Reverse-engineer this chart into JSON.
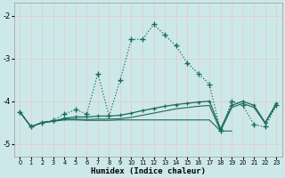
{
  "xlabel": "Humidex (Indice chaleur)",
  "xlim": [
    -0.5,
    23.5
  ],
  "ylim": [
    -5.3,
    -1.7
  ],
  "yticks": [
    -5,
    -4,
    -3,
    -2
  ],
  "xticks": [
    0,
    1,
    2,
    3,
    4,
    5,
    6,
    7,
    8,
    9,
    10,
    11,
    12,
    13,
    14,
    15,
    16,
    17,
    18,
    19,
    20,
    21,
    22,
    23
  ],
  "bg_color": "#cde8e8",
  "grid_color": "#e8c8c8",
  "line_color": "#1a6b5a",
  "dot_x": [
    0,
    1,
    2,
    3,
    4,
    5,
    6,
    7,
    8,
    9,
    10,
    11,
    12,
    13,
    14,
    15,
    16,
    17,
    18,
    19,
    20,
    21,
    22,
    23
  ],
  "dot_y": [
    -4.25,
    -4.6,
    -4.5,
    -4.45,
    -4.3,
    -4.2,
    -4.3,
    -3.35,
    -4.35,
    -3.5,
    -2.55,
    -2.55,
    -2.2,
    -2.45,
    -2.7,
    -3.1,
    -3.35,
    -3.6,
    -4.7,
    -4.0,
    -4.1,
    -4.55,
    -4.6,
    -4.1
  ],
  "slope_x": [
    0,
    1,
    2,
    3,
    4,
    5,
    6,
    7,
    8,
    9,
    10,
    11,
    12,
    13,
    14,
    15,
    16,
    17,
    18,
    19,
    20,
    21,
    22,
    23
  ],
  "slope_y": [
    -4.25,
    -4.6,
    -4.5,
    -4.47,
    -4.4,
    -4.37,
    -4.37,
    -4.35,
    -4.35,
    -4.33,
    -4.28,
    -4.22,
    -4.17,
    -4.12,
    -4.08,
    -4.05,
    -4.02,
    -4.0,
    -4.65,
    -4.1,
    -4.0,
    -4.1,
    -4.5,
    -4.05
  ],
  "mid_x": [
    0,
    1,
    2,
    3,
    4,
    5,
    6,
    7,
    8,
    9,
    10,
    11,
    12,
    13,
    14,
    15,
    16,
    17,
    18,
    19,
    20,
    21,
    22,
    23
  ],
  "mid_y": [
    -4.25,
    -4.6,
    -4.5,
    -4.47,
    -4.42,
    -4.42,
    -4.43,
    -4.42,
    -4.42,
    -4.41,
    -4.38,
    -4.33,
    -4.28,
    -4.23,
    -4.18,
    -4.15,
    -4.12,
    -4.1,
    -4.7,
    -4.15,
    -4.05,
    -4.15,
    -4.52,
    -4.08
  ],
  "flat_x": [
    0,
    1,
    2,
    3,
    4,
    5,
    6,
    7,
    8,
    9,
    10,
    11,
    12,
    13,
    14,
    15,
    16,
    17,
    18,
    19
  ],
  "flat_y": [
    -4.25,
    -4.6,
    -4.5,
    -4.47,
    -4.44,
    -4.44,
    -4.45,
    -4.45,
    -4.45,
    -4.44,
    -4.44,
    -4.44,
    -4.44,
    -4.44,
    -4.44,
    -4.44,
    -4.44,
    -4.44,
    -4.7,
    -4.7
  ]
}
